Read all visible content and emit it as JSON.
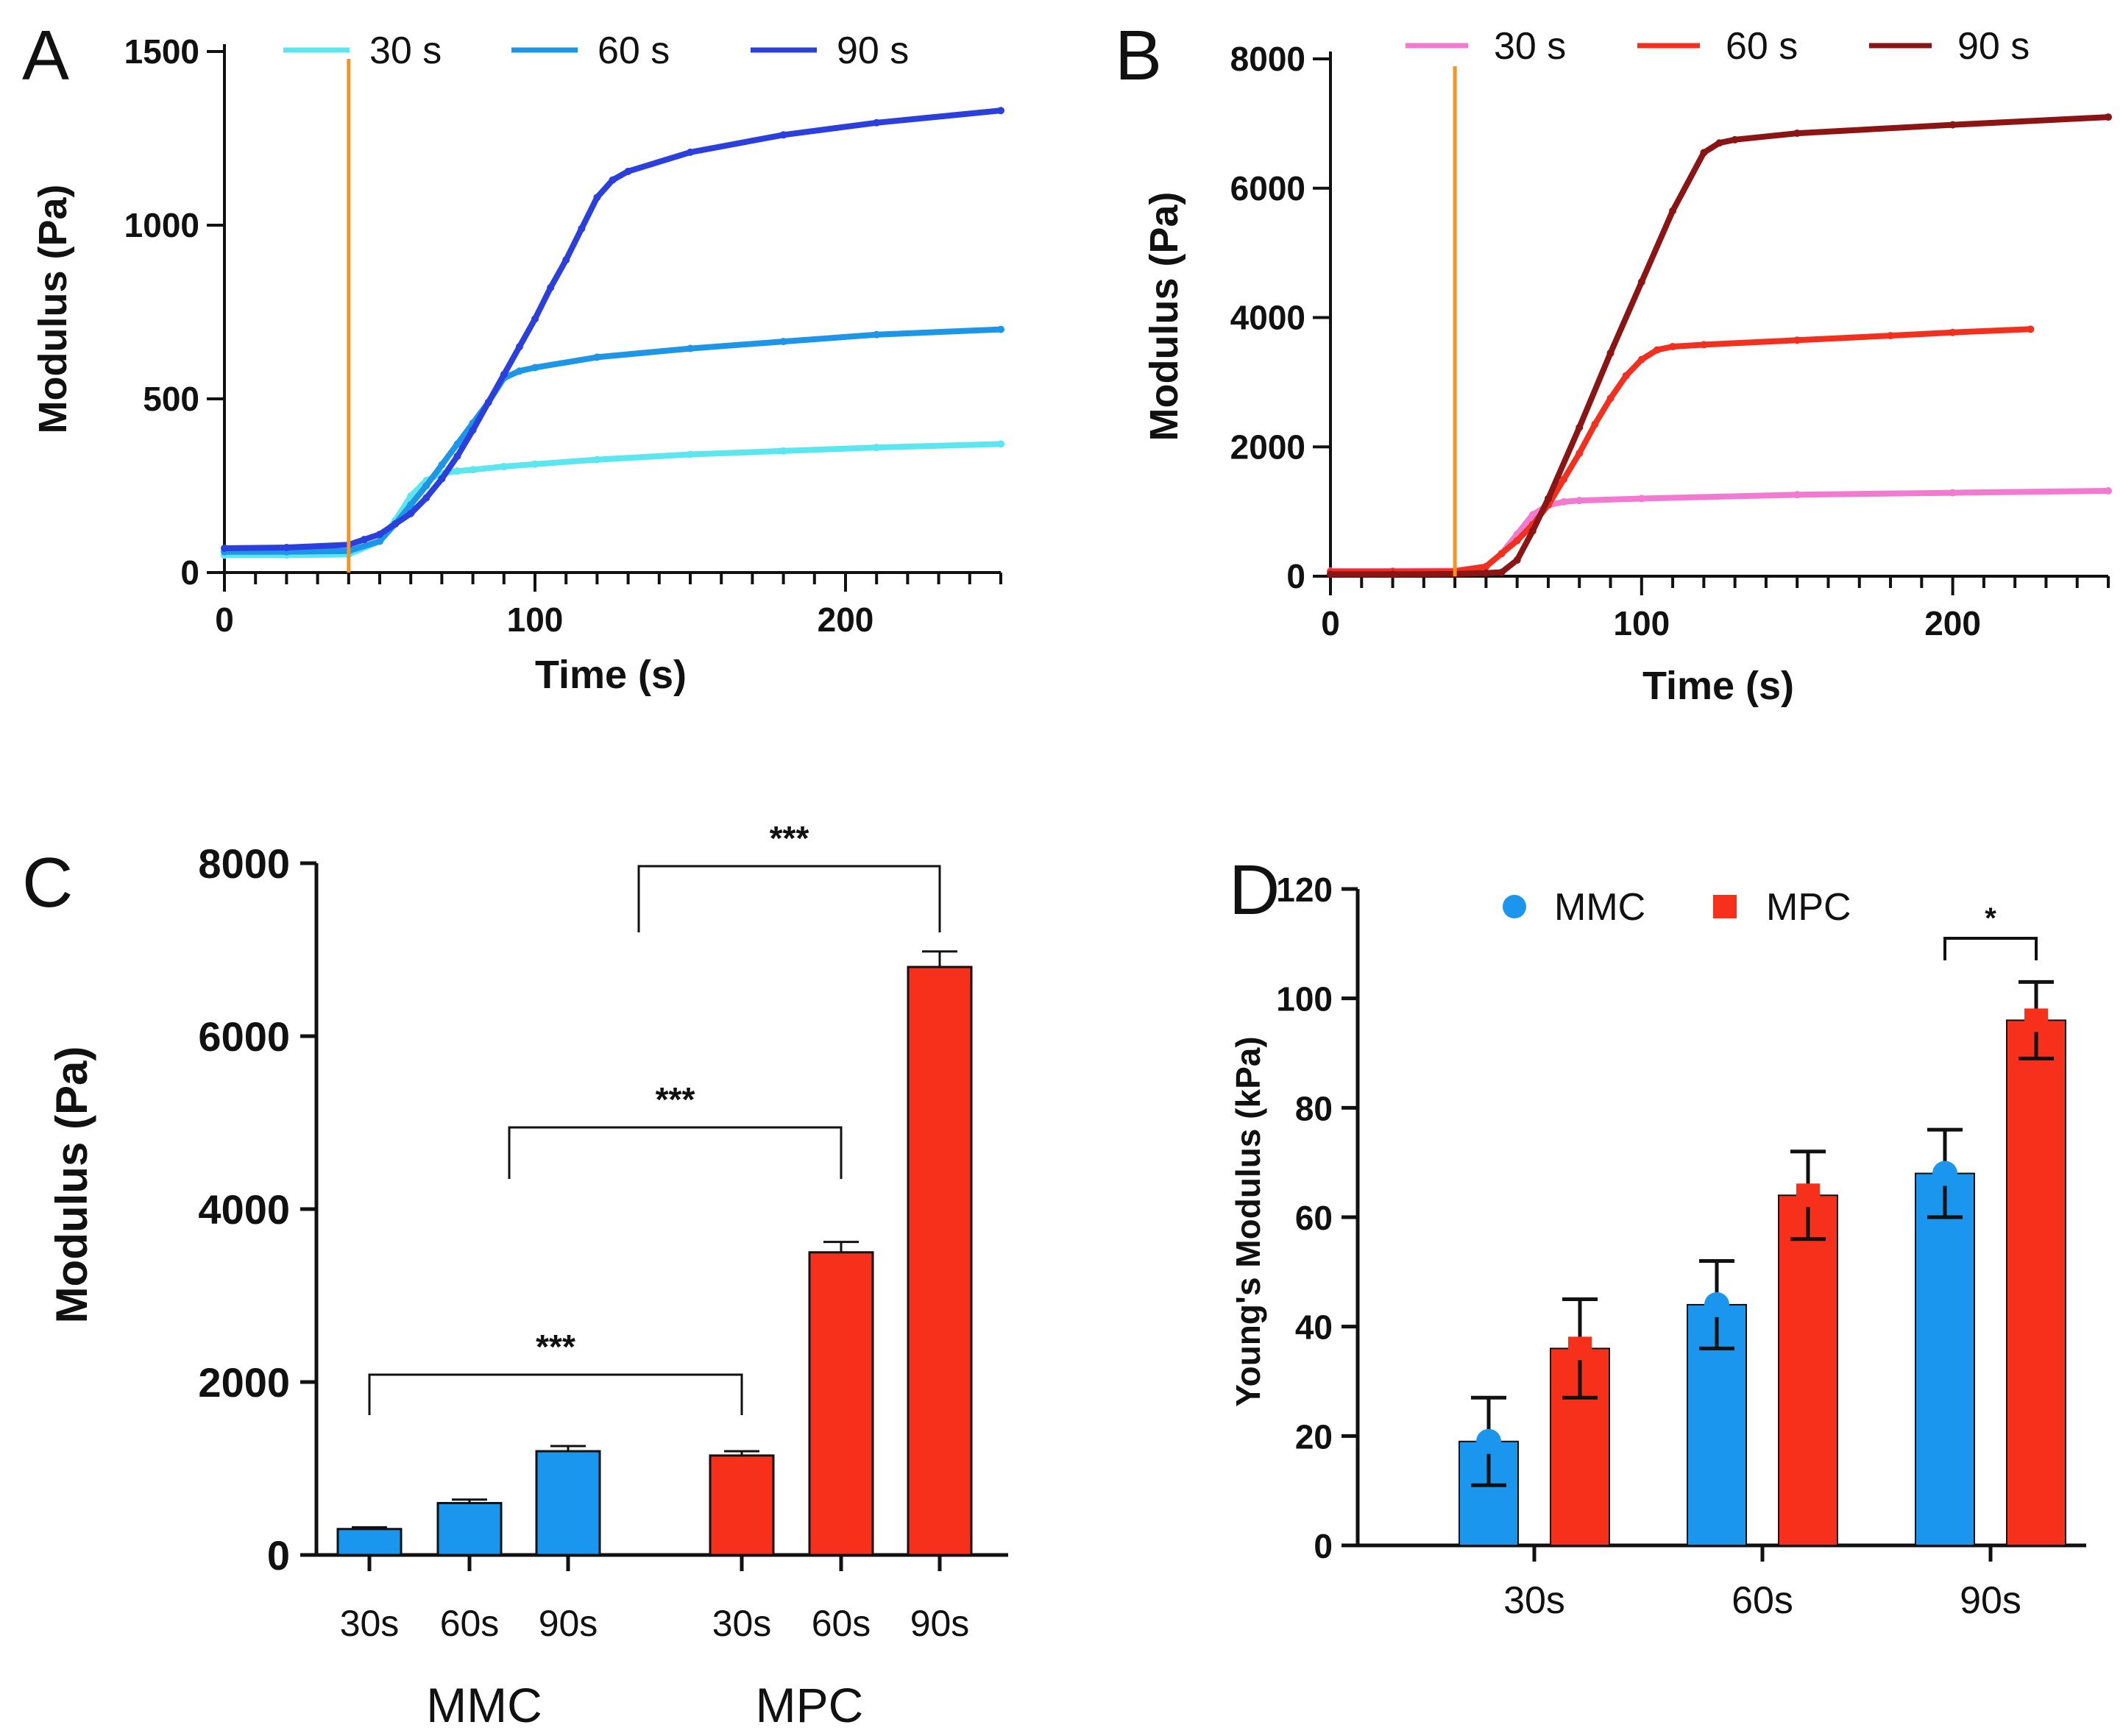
{
  "figure": {
    "panels": [
      "A",
      "B",
      "C",
      "D"
    ]
  },
  "chart_data": [
    {
      "id": "A",
      "type": "line",
      "panel_letter": "A",
      "xlabel": "Time (s)",
      "ylabel": "Modulus (Pa)",
      "xlim": [
        0,
        250
      ],
      "ylim": [
        0,
        1500
      ],
      "xticks": [
        0,
        100,
        200
      ],
      "yticks": [
        0,
        500,
        1000,
        1500
      ],
      "marker_line_x": 40,
      "marker_line_color": "#f7941d",
      "legend_position": "top",
      "series": [
        {
          "name": "30 s",
          "color": "#5ce6f0",
          "x": [
            0,
            20,
            40,
            50,
            55,
            60,
            65,
            70,
            75,
            80,
            90,
            100,
            120,
            150,
            180,
            210,
            250
          ],
          "y": [
            50,
            50,
            52,
            90,
            150,
            220,
            265,
            285,
            292,
            296,
            305,
            312,
            325,
            340,
            350,
            360,
            370
          ]
        },
        {
          "name": "60 s",
          "color": "#1e96e8",
          "x": [
            0,
            20,
            40,
            50,
            55,
            60,
            65,
            70,
            75,
            80,
            85,
            90,
            95,
            100,
            120,
            150,
            180,
            210,
            250
          ],
          "y": [
            60,
            60,
            62,
            90,
            140,
            195,
            250,
            310,
            370,
            430,
            490,
            560,
            580,
            590,
            620,
            645,
            665,
            685,
            700
          ]
        },
        {
          "name": "90 s",
          "color": "#2b3fdc",
          "x": [
            0,
            20,
            40,
            45,
            50,
            55,
            60,
            65,
            70,
            75,
            80,
            85,
            90,
            95,
            100,
            105,
            110,
            115,
            120,
            125,
            130,
            150,
            180,
            210,
            250
          ],
          "y": [
            70,
            72,
            80,
            95,
            110,
            140,
            170,
            215,
            270,
            335,
            410,
            490,
            570,
            650,
            730,
            820,
            900,
            990,
            1080,
            1130,
            1155,
            1210,
            1260,
            1295,
            1330
          ]
        }
      ]
    },
    {
      "id": "B",
      "type": "line",
      "panel_letter": "B",
      "xlabel": "Time (s)",
      "ylabel": "Modulus (Pa)",
      "xlim": [
        0,
        250
      ],
      "ylim": [
        0,
        8000
      ],
      "xticks": [
        0,
        100,
        200
      ],
      "yticks": [
        0,
        2000,
        4000,
        6000,
        8000
      ],
      "marker_line_x": 40,
      "marker_line_color": "#f7941d",
      "legend_position": "top",
      "series": [
        {
          "name": "30 s",
          "color": "#f27ad0",
          "x": [
            0,
            20,
            40,
            50,
            55,
            60,
            65,
            70,
            75,
            80,
            100,
            150,
            200,
            250
          ],
          "y": [
            80,
            80,
            85,
            150,
            350,
            650,
            950,
            1100,
            1150,
            1170,
            1200,
            1260,
            1290,
            1320
          ]
        },
        {
          "name": "60 s",
          "color": "#f2301f",
          "x": [
            0,
            20,
            40,
            50,
            55,
            60,
            65,
            70,
            75,
            80,
            85,
            90,
            95,
            100,
            105,
            110,
            120,
            150,
            180,
            200,
            225
          ],
          "y": [
            70,
            70,
            75,
            150,
            350,
            550,
            800,
            1100,
            1500,
            1900,
            2350,
            2750,
            3100,
            3350,
            3500,
            3550,
            3580,
            3650,
            3720,
            3770,
            3820
          ]
        },
        {
          "name": "90 s",
          "color": "#8b1414",
          "x": [
            0,
            20,
            40,
            50,
            55,
            60,
            65,
            70,
            80,
            90,
            100,
            110,
            120,
            125,
            130,
            150,
            200,
            250
          ],
          "y": [
            30,
            30,
            35,
            50,
            60,
            250,
            700,
            1200,
            2300,
            3450,
            4550,
            5650,
            6550,
            6700,
            6750,
            6850,
            6980,
            7100
          ]
        }
      ]
    },
    {
      "id": "C",
      "type": "bar",
      "panel_letter": "C",
      "ylabel": "Modulus (Pa)",
      "ylim": [
        0,
        8000
      ],
      "yticks": [
        0,
        2000,
        4000,
        6000,
        8000
      ],
      "groups": [
        {
          "name": "MMC",
          "color": "#1b96ee",
          "categories": [
            "30s",
            "60s",
            "90s"
          ],
          "values": [
            300,
            600,
            1200
          ],
          "errors": [
            20,
            40,
            60
          ]
        },
        {
          "name": "MPC",
          "color": "#f7301c",
          "categories": [
            "30s",
            "60s",
            "90s"
          ],
          "values": [
            1150,
            3500,
            6800
          ],
          "errors": [
            50,
            120,
            180
          ]
        }
      ],
      "significance": [
        {
          "from": "MMC 30s",
          "to": "MPC 30s",
          "label": "***"
        },
        {
          "from": "MMC 90s",
          "to": "MPC 60s",
          "label": "***"
        },
        {
          "from": "MPC 30s",
          "to": "MPC 90s",
          "label": "***"
        }
      ]
    },
    {
      "id": "D",
      "type": "bar",
      "panel_letter": "D",
      "ylabel": "Young's Modulus (kPa)",
      "ylim": [
        0,
        120
      ],
      "yticks": [
        0,
        20,
        40,
        60,
        80,
        100,
        120
      ],
      "categories": [
        "30s",
        "60s",
        "90s"
      ],
      "legend_position": "top",
      "series": [
        {
          "name": "MMC",
          "color": "#1b96ee",
          "values": [
            19,
            44,
            68
          ],
          "errors": [
            8,
            8,
            8
          ]
        },
        {
          "name": "MPC",
          "color": "#f7301c",
          "values": [
            36,
            64,
            96
          ],
          "errors": [
            9,
            8,
            7
          ]
        }
      ],
      "significance": [
        {
          "category": "90s",
          "label": "*"
        }
      ]
    }
  ]
}
